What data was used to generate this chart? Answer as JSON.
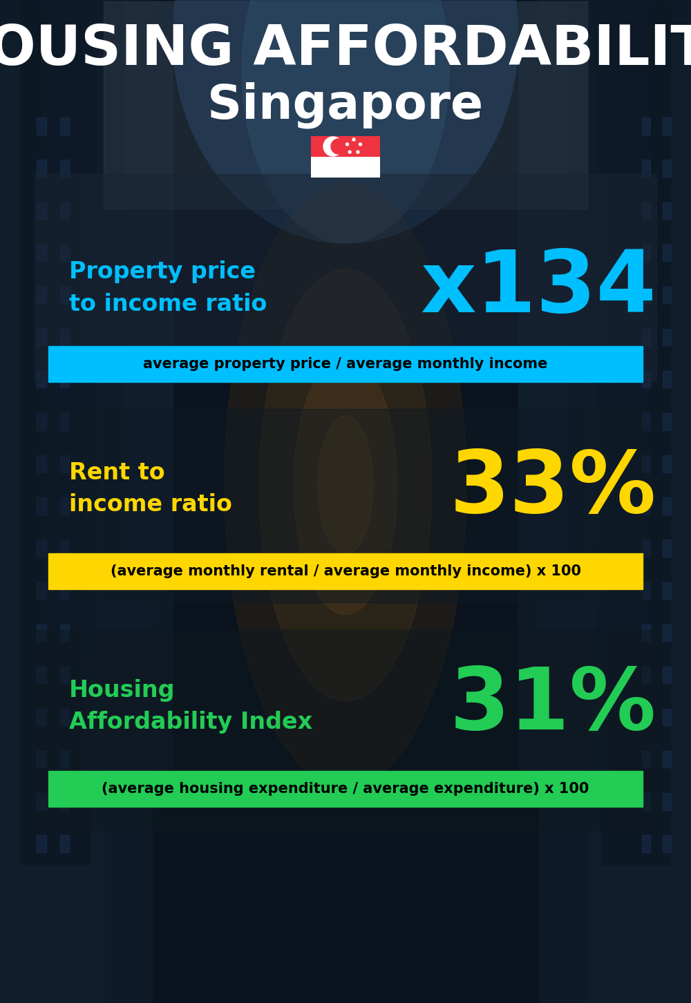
{
  "title_line1": "HOUSING AFFORDABILITY",
  "title_line2": "Singapore",
  "bg_color": "#0d1520",
  "section1_label": "Property price\nto income ratio",
  "section1_value": "x134",
  "section1_label_color": "#00bfff",
  "section1_value_color": "#00bfff",
  "section1_banner": "average property price / average monthly income",
  "section1_banner_bg": "#00bfff",
  "section1_banner_color": "#000000",
  "section2_label": "Rent to\nincome ratio",
  "section2_value": "33%",
  "section2_label_color": "#ffd700",
  "section2_value_color": "#ffd700",
  "section2_banner": "(average monthly rental / average monthly income) x 100",
  "section2_banner_bg": "#ffd700",
  "section2_banner_color": "#000000",
  "section3_label": "Housing\nAffordability Index",
  "section3_value": "31%",
  "section3_label_color": "#22cc55",
  "section3_value_color": "#22cc55",
  "section3_banner": "(average housing expenditure / average expenditure) x 100",
  "section3_banner_bg": "#22cc55",
  "section3_banner_color": "#000000",
  "flag_red": "#EF3340",
  "flag_white": "#FFFFFF",
  "title_color": "#FFFFFF",
  "title1_fontsize": 58,
  "title2_fontsize": 50,
  "label_fontsize": 24,
  "value1_fontsize": 90,
  "value23_fontsize": 90,
  "banner_fontsize": 15
}
